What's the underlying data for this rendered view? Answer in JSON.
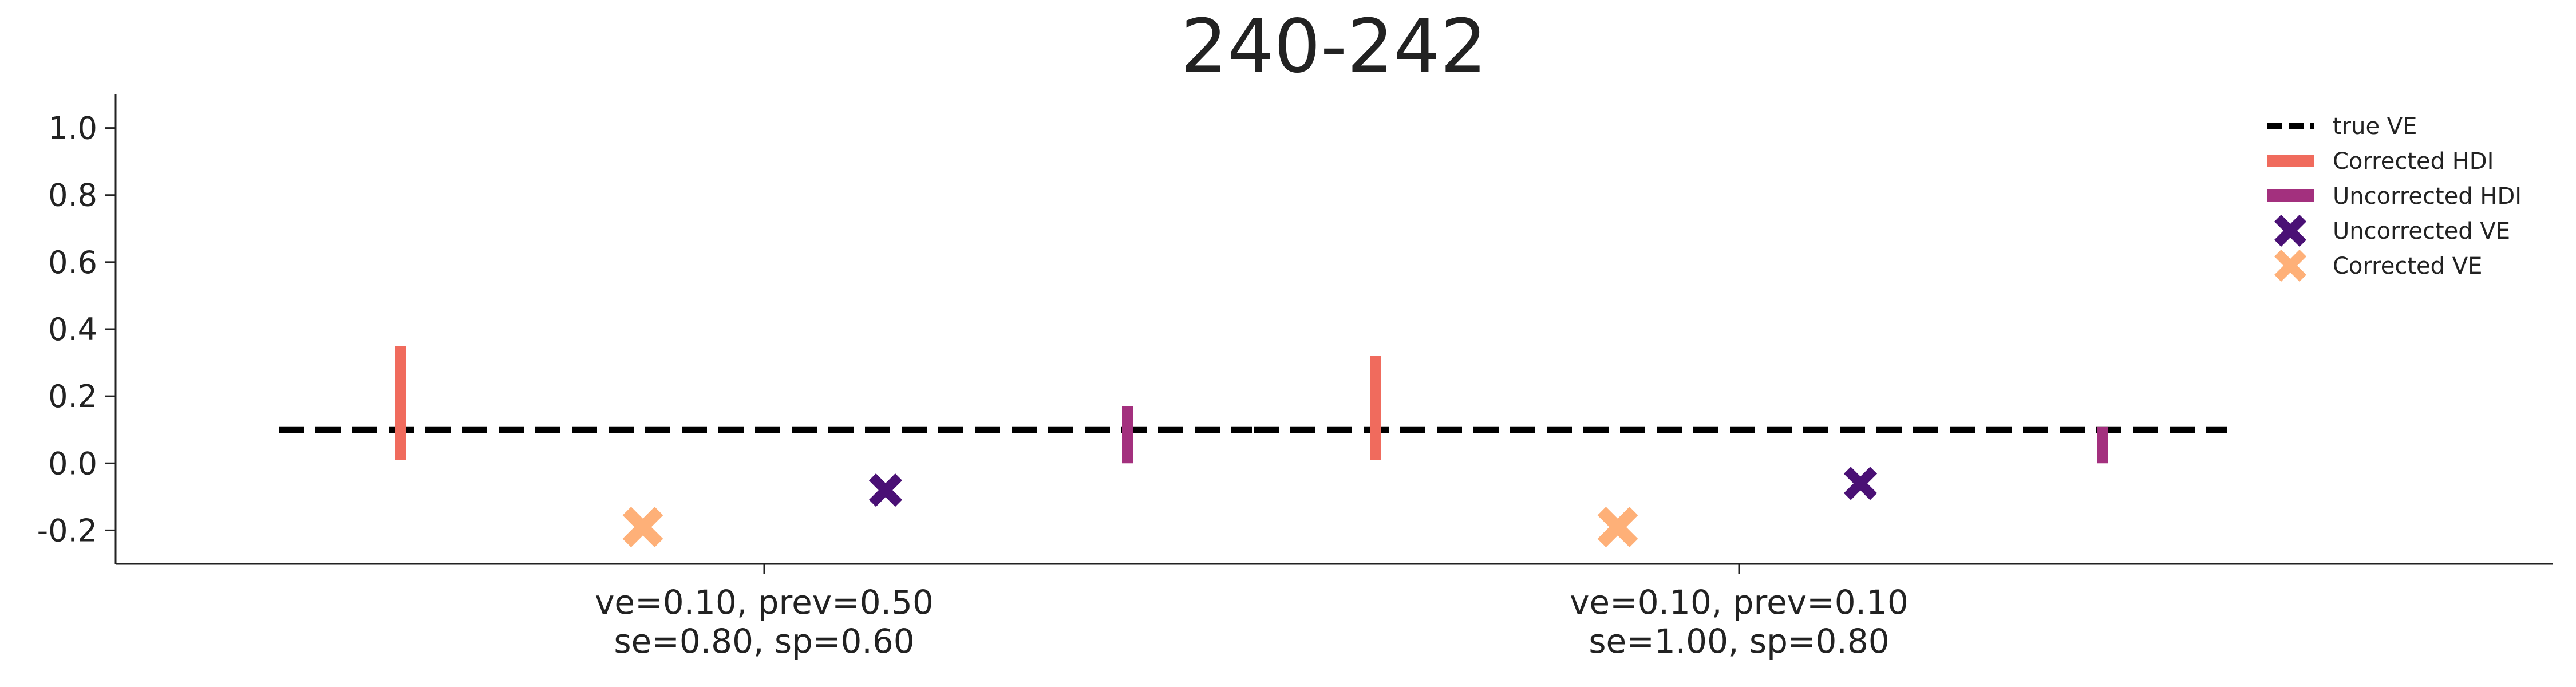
{
  "chart_data": {
    "type": "scatter",
    "title": "240-242",
    "xlabel": "",
    "ylabel": "",
    "ylim": [
      -0.3,
      1.1
    ],
    "yticks": [
      -0.2,
      0.0,
      0.2,
      0.4,
      0.6,
      0.8,
      1.0
    ],
    "ytick_labels": [
      "-0.2",
      "0.0",
      "0.2",
      "0.4",
      "0.6",
      "0.8",
      "1.0"
    ],
    "grid": false,
    "legend_position": "top-right",
    "groups": [
      {
        "label_line1": "ve=0.10, prev=0.50",
        "label_line2": "se=0.80, sp=0.60",
        "true_ve": 0.1,
        "corrected_hdi": [
          0.01,
          0.35
        ],
        "uncorrected_hdi": [
          0.0,
          0.17
        ],
        "corrected_ve": -0.19,
        "uncorrected_ve": -0.08
      },
      {
        "label_line1": "ve=0.10, prev=0.10",
        "label_line2": "se=1.00, sp=0.80",
        "true_ve": 0.1,
        "corrected_hdi": [
          0.01,
          0.32
        ],
        "uncorrected_hdi": [
          0.0,
          0.11
        ],
        "corrected_ve": -0.19,
        "uncorrected_ve": -0.06
      }
    ],
    "legend": [
      {
        "key": "true",
        "label": "true VE",
        "kind": "dashed-line",
        "color": "#000000"
      },
      {
        "key": "chdi",
        "label": "Corrected HDI",
        "kind": "bar",
        "color": "#f06b5d"
      },
      {
        "key": "uhdi",
        "label": "Uncorrected HDI",
        "kind": "bar",
        "color": "#a3307e"
      },
      {
        "key": "uve",
        "label": "Uncorrected VE",
        "kind": "x-marker",
        "color": "#4a1075"
      },
      {
        "key": "cve",
        "label": "Corrected VE",
        "kind": "x-marker",
        "color": "#feb078"
      }
    ]
  }
}
